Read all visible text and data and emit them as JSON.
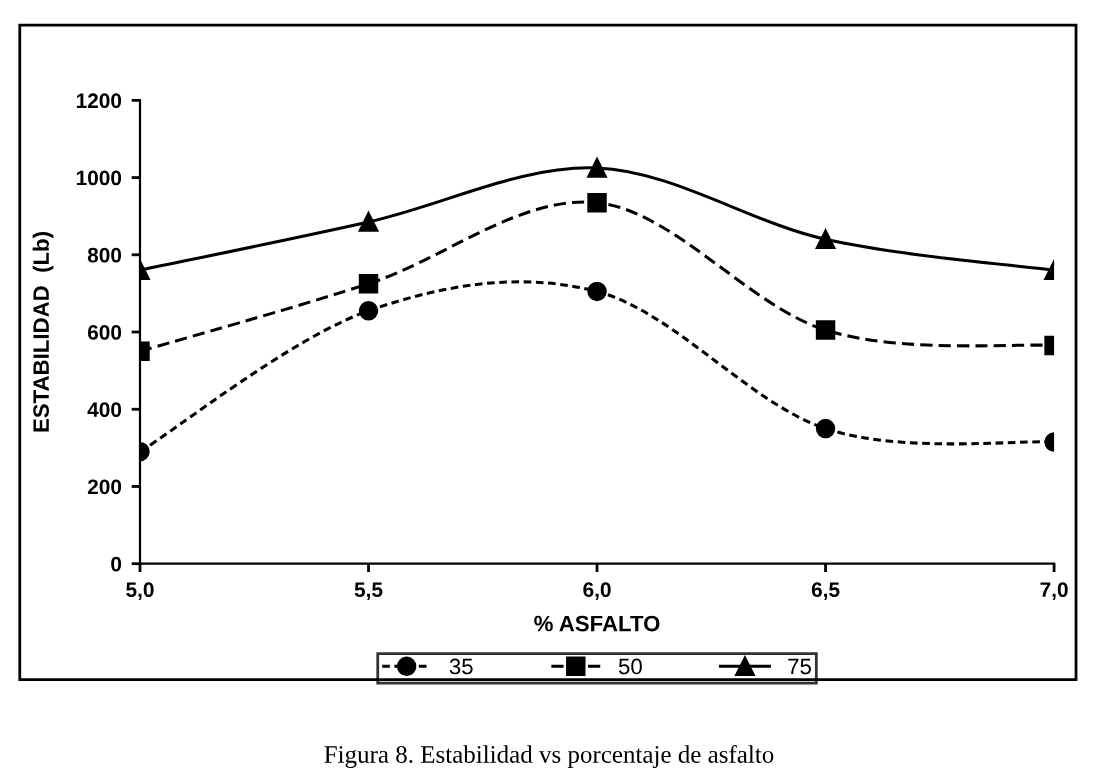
{
  "chart_data": {
    "type": "line",
    "xlabel": "% ASFALTO",
    "ylabel": "ESTABILIDAD  (Lb)",
    "x": [
      5.0,
      5.5,
      6.0,
      6.5,
      7.0
    ],
    "xlim": [
      5.0,
      7.0
    ],
    "xticks": [
      {
        "value": 5.0,
        "label": "5,0"
      },
      {
        "value": 5.5,
        "label": "5,5"
      },
      {
        "value": 6.0,
        "label": "6,0"
      },
      {
        "value": 6.5,
        "label": "6,5"
      },
      {
        "value": 7.0,
        "label": "7,0"
      }
    ],
    "ylim": [
      0,
      1200
    ],
    "yticks": [
      0,
      200,
      400,
      600,
      800,
      1000,
      1200
    ],
    "grid": false,
    "legend": "bottom",
    "series": [
      {
        "name": "35",
        "color": "#000000",
        "marker": "circle",
        "line_style": "dotted",
        "values": [
          290,
          655,
          705,
          350,
          315
        ]
      },
      {
        "name": "50",
        "color": "#000000",
        "marker": "square",
        "line_style": "dashed",
        "values": [
          550,
          725,
          935,
          605,
          565
        ]
      },
      {
        "name": "75",
        "color": "#000000",
        "marker": "triangle",
        "line_style": "solid",
        "values": [
          760,
          885,
          1025,
          840,
          760
        ]
      }
    ],
    "annotations": [
      "Figura 8. Estabilidad vs porcentaje de asfalto"
    ]
  }
}
